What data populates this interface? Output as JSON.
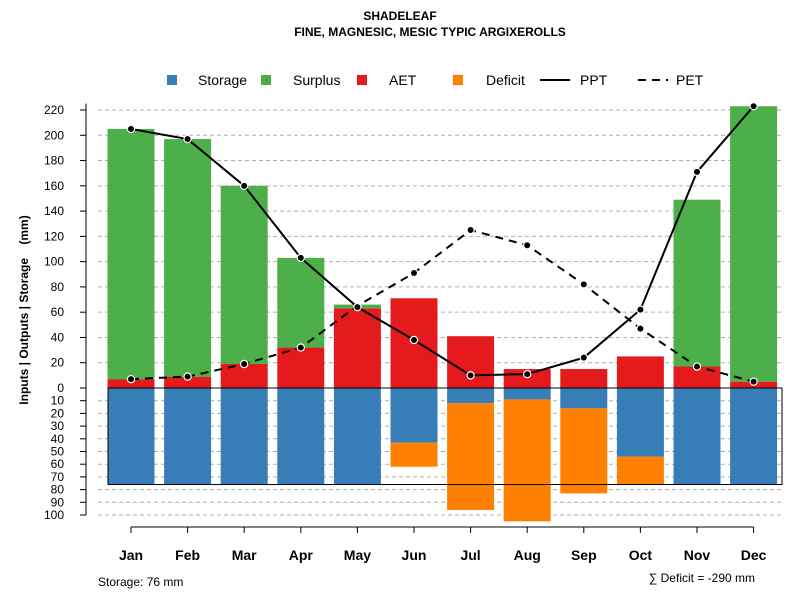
{
  "colors": {
    "storage": "#377EB8",
    "surplus": "#4DAF4A",
    "aet": "#E41A1C",
    "deficit": "#FF7F00",
    "ppt": "#000000",
    "pet": "#000000",
    "grid": "#b0b0b0"
  },
  "chart_data": {
    "type": "bar",
    "title": "SHADELEAF",
    "subtitle": "FINE, MAGNESIC, MESIC TYPIC ARGIXEROLLS",
    "ylabel": "Inputs | Outputs | Storage    (mm)",
    "categories": [
      "Jan",
      "Feb",
      "Mar",
      "Apr",
      "May",
      "Jun",
      "Jul",
      "Aug",
      "Sep",
      "Oct",
      "Nov",
      "Dec"
    ],
    "upper_ylim": [
      0,
      225
    ],
    "upper_ticks": [
      "0",
      "20",
      "40",
      "60",
      "80",
      "100",
      "120",
      "140",
      "160",
      "180",
      "200",
      "220"
    ],
    "lower_ylim": [
      0,
      100
    ],
    "lower_ticks": [
      "10",
      "20",
      "30",
      "40",
      "50",
      "60",
      "70",
      "80",
      "90",
      "100"
    ],
    "legend": [
      {
        "name": "Storage",
        "kind": "box",
        "color_key": "storage"
      },
      {
        "name": "Surplus",
        "kind": "box",
        "color_key": "surplus"
      },
      {
        "name": "AET",
        "kind": "box",
        "color_key": "aet"
      },
      {
        "name": "Deficit",
        "kind": "box",
        "color_key": "deficit"
      },
      {
        "name": "PPT",
        "kind": "solid",
        "color_key": "ppt"
      },
      {
        "name": "PET",
        "kind": "dashed",
        "color_key": "pet"
      }
    ],
    "series": [
      {
        "name": "AET",
        "values": [
          7,
          9,
          19,
          32,
          63,
          71,
          41,
          15,
          15,
          25,
          17,
          5
        ]
      },
      {
        "name": "Surplus",
        "values": [
          198,
          188,
          141,
          71,
          3,
          0,
          0,
          0,
          0,
          0,
          132,
          218
        ]
      },
      {
        "name": "Storage",
        "values": [
          76,
          76,
          76,
          76,
          76,
          43,
          12,
          9,
          16,
          54,
          76,
          76
        ]
      },
      {
        "name": "Deficit",
        "values": [
          0,
          0,
          0,
          0,
          0,
          19,
          84,
          96,
          67,
          22,
          0,
          0
        ]
      },
      {
        "name": "PPT",
        "values": [
          205,
          197,
          160,
          103,
          64,
          38,
          10,
          11,
          24,
          62,
          171,
          223
        ]
      },
      {
        "name": "PET",
        "values": [
          7,
          9,
          19,
          32,
          65,
          91,
          125,
          113,
          82,
          47,
          17,
          5
        ]
      }
    ],
    "storage_capacity": 76,
    "footer_left": "Storage: 76 mm",
    "footer_right": "∑ Deficit = -290 mm"
  }
}
